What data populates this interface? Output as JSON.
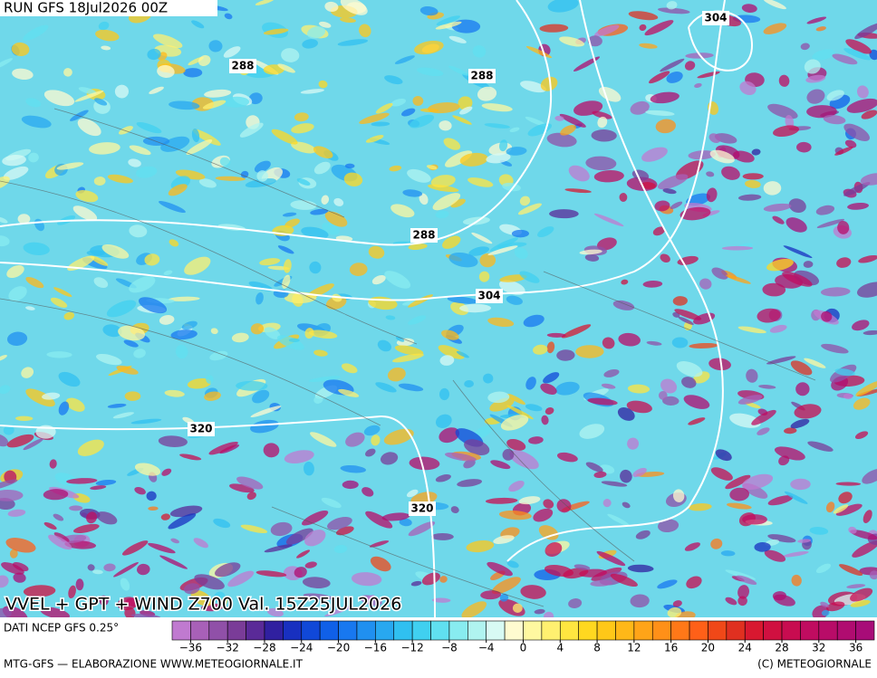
{
  "header": {
    "run": "RUN GFS 18Jul2026 00Z"
  },
  "map": {
    "contour_labels": [
      288,
      288,
      288,
      304,
      304,
      320,
      320
    ],
    "title": "VVEL + GPT + WIND Z700 Val. 15Z25JUL2026"
  },
  "legend": {
    "source": "DATI NCEP GFS 0.25°",
    "range": [
      -38,
      38
    ],
    "colors": [
      "#c07ad0",
      "#a860b8",
      "#9050a8",
      "#7a3c98",
      "#5a2a98",
      "#3020a0",
      "#1830c0",
      "#1048d8",
      "#1060e8",
      "#1878f0",
      "#2090f0",
      "#28a8f0",
      "#30c0f0",
      "#40d0f0",
      "#60e0f0",
      "#88ecf0",
      "#b0f4f0",
      "#d8faf4",
      "#fffbd0",
      "#fff8a0",
      "#fff070",
      "#ffe640",
      "#ffd820",
      "#ffc818",
      "#ffb818",
      "#ffa418",
      "#ff9018",
      "#ff7818",
      "#ff6018",
      "#f04818",
      "#e03020",
      "#d81830",
      "#d01040",
      "#c80c50",
      "#c00c60",
      "#b80c68",
      "#b00c70",
      "#a80c78"
    ],
    "ticks": [
      {
        "value": -36,
        "label": "−36"
      },
      {
        "value": -32,
        "label": "−32"
      },
      {
        "value": -28,
        "label": "−28"
      },
      {
        "value": -24,
        "label": "−24"
      },
      {
        "value": -20,
        "label": "−20"
      },
      {
        "value": -16,
        "label": "−16"
      },
      {
        "value": -12,
        "label": "−12"
      },
      {
        "value": -8,
        "label": "−8"
      },
      {
        "value": -4,
        "label": "−4"
      },
      0,
      4,
      8,
      12,
      16,
      20,
      24,
      28,
      32,
      36
    ]
  },
  "footer": {
    "left": "MTG-GFS — ELABORAZIONE WWW.METEOGIORNALE.IT",
    "right": "(C) METEOGIORNALE"
  }
}
